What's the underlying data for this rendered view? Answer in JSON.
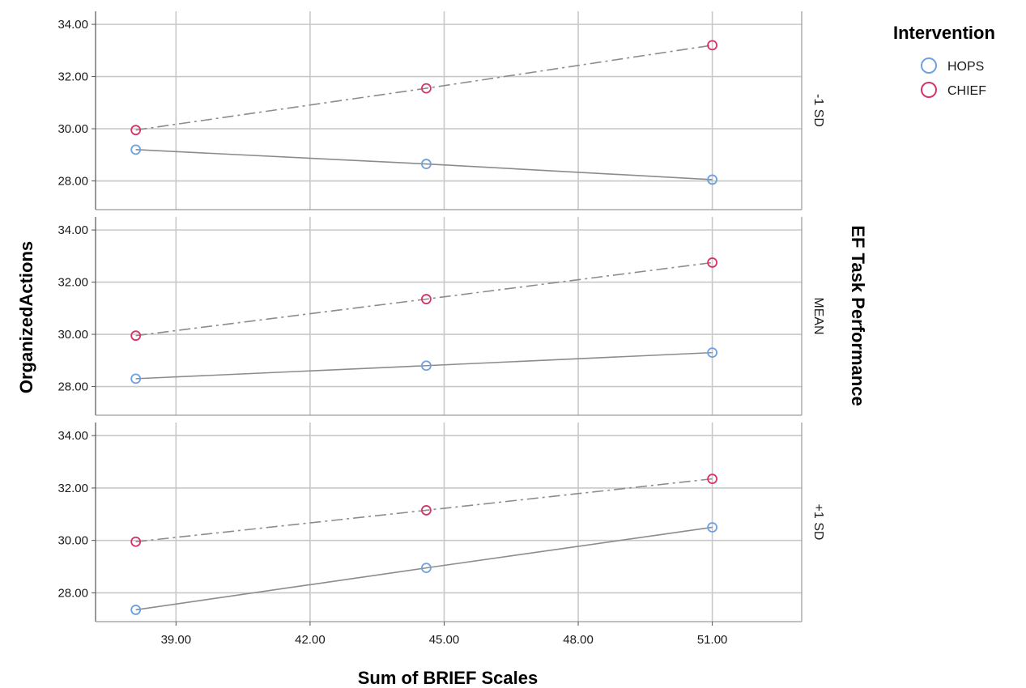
{
  "chart_data": {
    "type": "line",
    "xlabel": "Sum of BRIEF Scales",
    "ylabel": "OrganizedActions",
    "facet_label": "EF Task Performance",
    "legend_title": "Intervention",
    "legend_position": "top-right",
    "xlim": [
      37.2,
      53.0
    ],
    "ylim": [
      26.9,
      34.5
    ],
    "x_ticks": [
      39,
      42,
      45,
      48,
      51
    ],
    "x_tick_labels": [
      "39.00",
      "42.00",
      "45.00",
      "48.00",
      "51.00"
    ],
    "y_ticks": [
      28,
      30,
      32,
      34
    ],
    "y_tick_labels": [
      "28.00",
      "30.00",
      "32.00",
      "34.00"
    ],
    "grid": true,
    "x": [
      38.1,
      44.6,
      51.0
    ],
    "series_styles": [
      {
        "name": "HOPS",
        "color": "#6fa0e0",
        "dash": "none"
      },
      {
        "name": "CHIEF",
        "color": "#d6336c",
        "dash": "14 5 3 5"
      }
    ],
    "panels": [
      {
        "label": "-1 SD",
        "series": [
          {
            "name": "HOPS",
            "values": [
              29.2,
              28.65,
              28.05
            ]
          },
          {
            "name": "CHIEF",
            "values": [
              29.95,
              31.55,
              33.2
            ]
          }
        ]
      },
      {
        "label": "MEAN",
        "series": [
          {
            "name": "HOPS",
            "values": [
              28.3,
              28.8,
              29.3
            ]
          },
          {
            "name": "CHIEF",
            "values": [
              29.95,
              31.35,
              32.75
            ]
          }
        ]
      },
      {
        "label": "+1 SD",
        "series": [
          {
            "name": "HOPS",
            "values": [
              27.35,
              28.95,
              30.5
            ]
          },
          {
            "name": "CHIEF",
            "values": [
              29.95,
              31.15,
              32.35
            ]
          }
        ]
      }
    ]
  }
}
